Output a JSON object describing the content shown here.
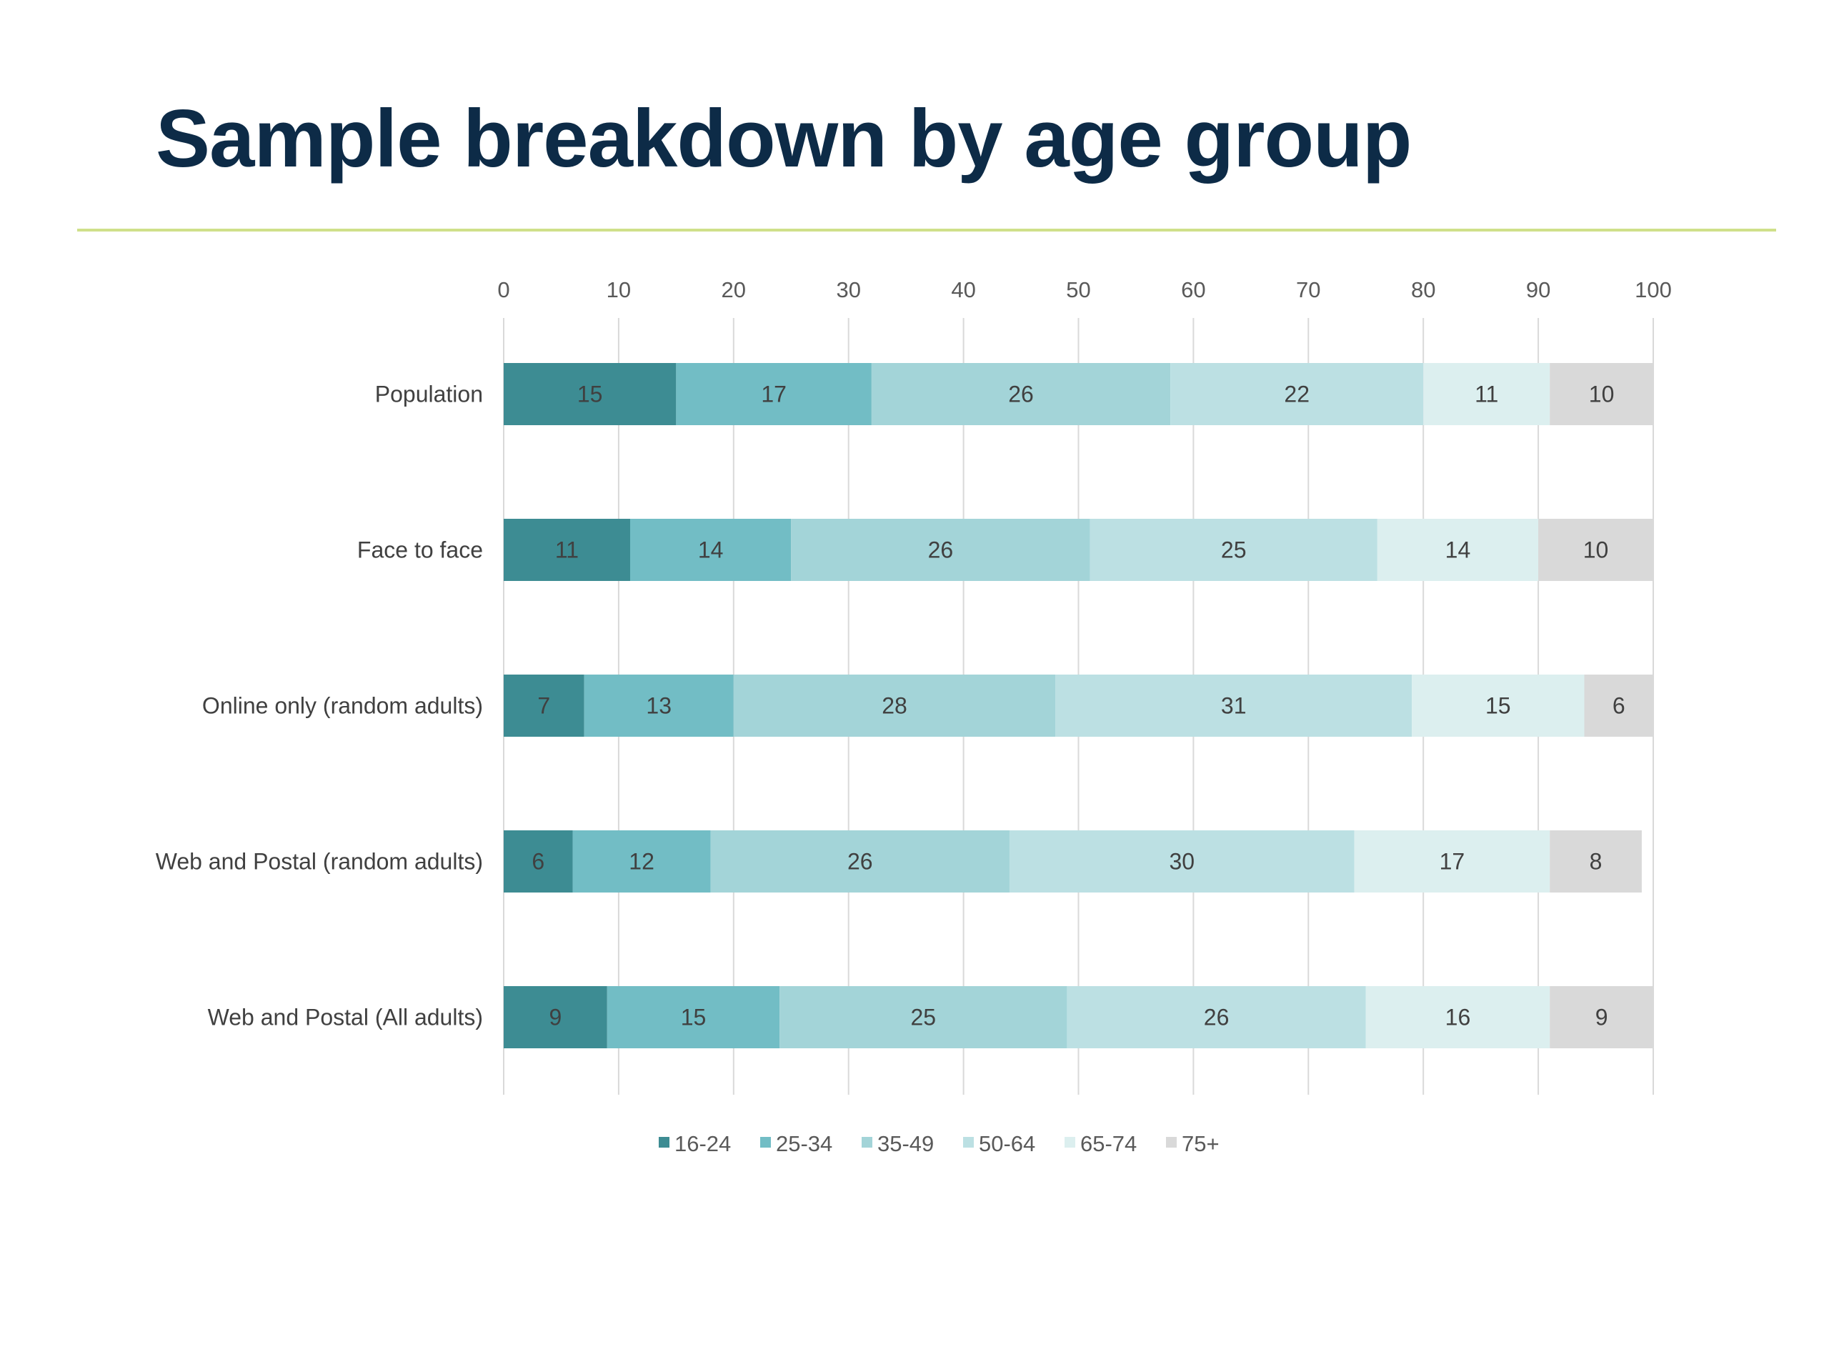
{
  "page": {
    "title": "Sample breakdown by age group",
    "rule_color": "#cfe08a",
    "title_color": "#0d2b47"
  },
  "chart_data": {
    "type": "bar",
    "orientation": "horizontal",
    "stacked": true,
    "categories": [
      "Population",
      "Face to face",
      "Online only (random adults)",
      "Web and Postal (random adults)",
      "Web and Postal (All adults)"
    ],
    "series": [
      {
        "name": "16-24",
        "color": "#3d8c93",
        "values": [
          15,
          11,
          7,
          6,
          9
        ]
      },
      {
        "name": "25-34",
        "color": "#72bdc5",
        "values": [
          17,
          14,
          13,
          12,
          15
        ]
      },
      {
        "name": "35-49",
        "color": "#a3d4d8",
        "values": [
          26,
          26,
          28,
          26,
          25
        ]
      },
      {
        "name": "50-64",
        "color": "#bce0e3",
        "values": [
          22,
          25,
          31,
          30,
          26
        ]
      },
      {
        "name": "65-74",
        "color": "#dcefef",
        "values": [
          11,
          14,
          15,
          17,
          16
        ]
      },
      {
        "name": "75+",
        "color": "#d9d9d9",
        "values": [
          10,
          10,
          6,
          8,
          9
        ]
      }
    ],
    "xlim": [
      0,
      100
    ],
    "xticks": [
      "0",
      "10",
      "20",
      "30",
      "40",
      "50",
      "60",
      "70",
      "80",
      "90",
      "100"
    ],
    "x_axis_position": "top",
    "grid": true,
    "legend_position": "bottom",
    "data_labels": true
  }
}
